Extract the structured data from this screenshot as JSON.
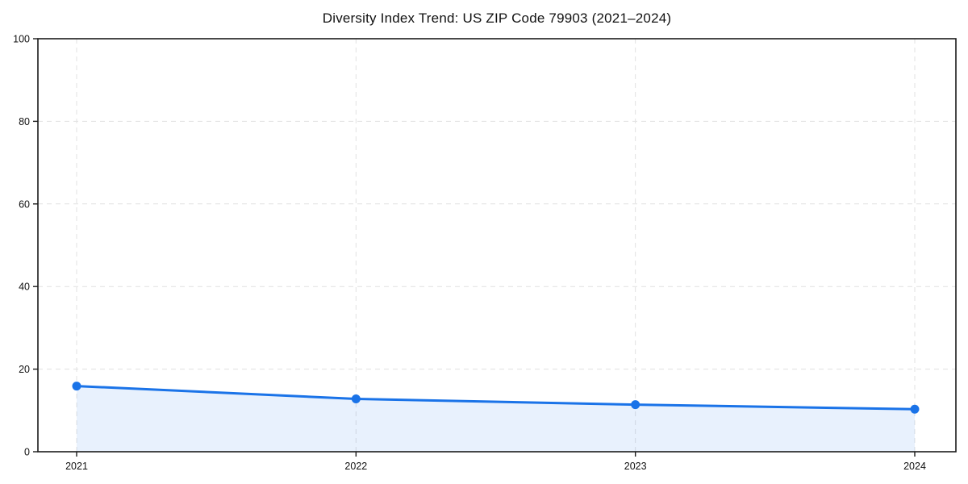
{
  "page": {
    "background": "#ffffff"
  },
  "chart_data": {
    "type": "line",
    "title": "Diversity Index Trend: US ZIP Code 79903 (2021–2024)",
    "categories": [
      "2021",
      "2022",
      "2023",
      "2024"
    ],
    "x": [
      2021,
      2022,
      2023,
      2024
    ],
    "series": [
      {
        "name": "Diversity Index",
        "values": [
          15.9,
          12.8,
          11.4,
          10.3
        ]
      }
    ],
    "xlabel": "",
    "ylabel": "",
    "ylim": [
      0,
      100
    ],
    "yticks": [
      0,
      20,
      40,
      60,
      80,
      100
    ],
    "grid": true,
    "grid_style": "dashed",
    "legend_position": "none",
    "area_fill": true,
    "marker": "circle",
    "colors": {
      "line": "#1a73e8",
      "marker": "#1a73e8",
      "area": "rgba(26, 115, 232, 0.10)",
      "grid": "#e1e1e1",
      "border": "#1c1c1c",
      "text": "#111111",
      "background": "#ffffff"
    }
  }
}
